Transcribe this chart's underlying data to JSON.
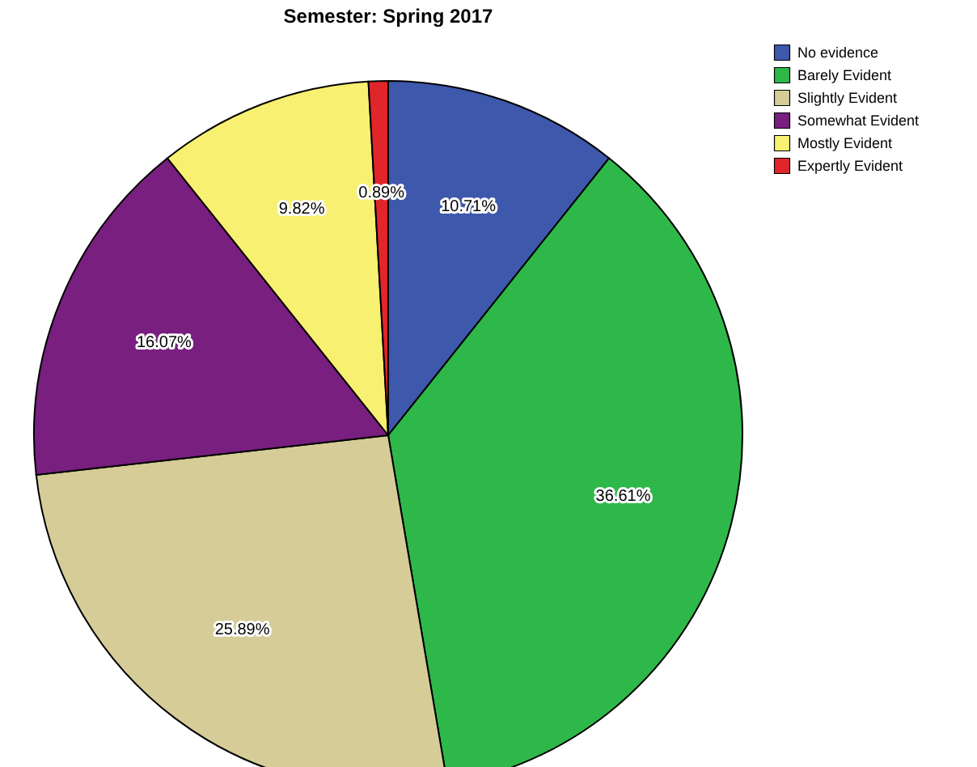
{
  "chart_data": {
    "type": "pie",
    "title": "Semester: Spring 2017",
    "categories": [
      "No evidence",
      "Barely Evident",
      "Slightly Evident",
      "Somewhat Evident",
      "Mostly Evident",
      "Expertly Evident"
    ],
    "values": [
      10.71,
      36.61,
      25.89,
      16.07,
      9.82,
      0.89
    ],
    "value_labels": [
      "10.71%",
      "36.61%",
      "25.89%",
      "16.07%",
      "9.82%",
      "0.89%"
    ],
    "colors": [
      "#3e58ac",
      "#2eb84a",
      "#d5cc97",
      "#781f7f",
      "#f8f070",
      "#e0262a"
    ],
    "legend": "top right"
  }
}
